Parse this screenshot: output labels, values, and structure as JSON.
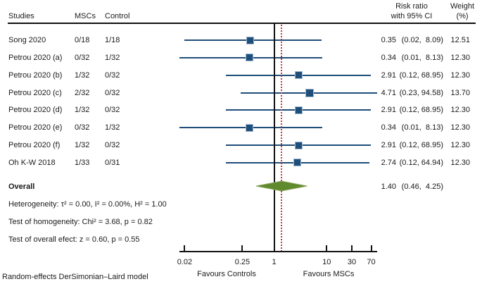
{
  "header": {
    "studies": "Studies",
    "mscs": "MSCs",
    "control": "Control",
    "risk_ratio_line1": "Risk ratio",
    "risk_ratio_line2": "with 95% CI",
    "weight_line1": "Weight",
    "weight_line2": "(%)"
  },
  "stats": {
    "overall_label": "Overall",
    "heterogeneity": "Heterogeneity: τ² = 0.00, I² = 0.00%, H² = 1.00",
    "homogeneity": "Test of homogeneity: Chi² = 3.68, p = 0.82",
    "overall_effect": "Test of overall efect: z = 0.60, p = 0.55"
  },
  "axis": {
    "favours_left": "Favours Controls",
    "favours_right": "Favours MSCs"
  },
  "footer": "Random-effects DerSimonian–Laird model",
  "colors": {
    "navy": "#1f4e79",
    "navy_light": "#9db8d2",
    "green_fill": "#5f8a2e",
    "green_edge": "#8aa65c",
    "red": "#c23b3b",
    "black": "#111111"
  },
  "chart_data": {
    "type": "forest",
    "scale": "log",
    "title": "",
    "xlabel_left": "Favours Controls",
    "xlabel_right": "Favours MSCs",
    "x_ticks": [
      0.02,
      0.25,
      1,
      10,
      30,
      70
    ],
    "x_range_displayed": [
      0.015,
      80
    ],
    "reference_line": 1,
    "overall_reference_line": 1.4,
    "grid": false,
    "studies": [
      {
        "name": "Song 2020",
        "mscs": "0/18",
        "control": "1/18",
        "rr": 0.35,
        "ci_low": 0.02,
        "ci_high": 8.09,
        "weight_pct": 12.51
      },
      {
        "name": "Petrou 2020 (a)",
        "mscs": "0/32",
        "control": "1/32",
        "rr": 0.34,
        "ci_low": 0.01,
        "ci_high": 8.13,
        "weight_pct": 12.3
      },
      {
        "name": "Petrou 2020 (b)",
        "mscs": "1/32",
        "control": "0/32",
        "rr": 2.91,
        "ci_low": 0.12,
        "ci_high": 68.95,
        "weight_pct": 12.3
      },
      {
        "name": "Petrou 2020 (c)",
        "mscs": "2/32",
        "control": "0/32",
        "rr": 4.71,
        "ci_low": 0.23,
        "ci_high": 94.58,
        "weight_pct": 13.7
      },
      {
        "name": "Petrou 2020 (d)",
        "mscs": "1/32",
        "control": "0/32",
        "rr": 2.91,
        "ci_low": 0.12,
        "ci_high": 68.95,
        "weight_pct": 12.3
      },
      {
        "name": "Petrou 2020 (e)",
        "mscs": "0/32",
        "control": "1/32",
        "rr": 0.34,
        "ci_low": 0.01,
        "ci_high": 8.13,
        "weight_pct": 12.3
      },
      {
        "name": "Petrou 2020 (f)",
        "mscs": "1/32",
        "control": "0/32",
        "rr": 2.91,
        "ci_low": 0.12,
        "ci_high": 68.95,
        "weight_pct": 12.3
      },
      {
        "name": "Oh K-W 2018",
        "mscs": "1/33",
        "control": "0/31",
        "rr": 2.74,
        "ci_low": 0.12,
        "ci_high": 64.94,
        "weight_pct": 12.3
      }
    ],
    "overall": {
      "label": "Overall",
      "rr": 1.4,
      "ci_low": 0.46,
      "ci_high": 4.25
    },
    "heterogeneity": {
      "tau2": 0.0,
      "I2_pct": 0.0,
      "H2": 1.0
    },
    "test_homogeneity": {
      "chi2": 3.68,
      "p": 0.82
    },
    "test_overall_effect": {
      "z": 0.6,
      "p": 0.55
    },
    "model": "Random-effects DerSimonian–Laird model"
  }
}
